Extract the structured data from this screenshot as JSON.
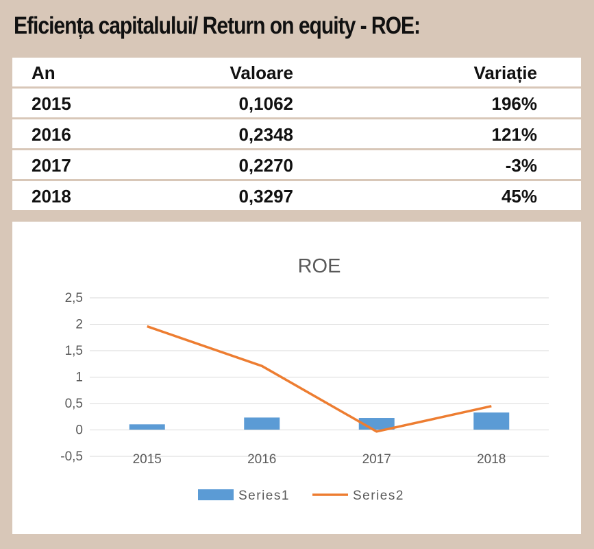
{
  "title": "Eficiența capitalului/ Return on equity - ROE:",
  "table": {
    "headers": [
      "An",
      "Valoare",
      "Variație"
    ],
    "rows": [
      [
        "2015",
        "0,1062",
        "196%"
      ],
      [
        "2016",
        "0,2348",
        "121%"
      ],
      [
        "2017",
        "0,2270",
        "-3%"
      ],
      [
        "2018",
        "0,3297",
        "45%"
      ]
    ]
  },
  "colors": {
    "background": "#d8c7b8",
    "series1": "#5b9bd5",
    "series2": "#ed7d31",
    "grid": "#d9d9d9",
    "axis_text": "#595959"
  },
  "chart_data": {
    "type": "bar",
    "title": "ROE",
    "categories": [
      "2015",
      "2016",
      "2017",
      "2018"
    ],
    "series": [
      {
        "name": "Series1",
        "type": "bar",
        "values": [
          0.1062,
          0.2348,
          0.227,
          0.3297
        ]
      },
      {
        "name": "Series2",
        "type": "line",
        "values": [
          1.96,
          1.21,
          -0.03,
          0.45
        ]
      }
    ],
    "ylim": [
      -0.5,
      2.5
    ],
    "yticks": [
      -0.5,
      0,
      0.5,
      1,
      1.5,
      2,
      2.5
    ],
    "ytick_labels": [
      "-0,5",
      "0",
      "0,5",
      "1",
      "1,5",
      "2",
      "2,5"
    ],
    "grid": true,
    "legend_position": "bottom",
    "xlabel": "",
    "ylabel": ""
  }
}
